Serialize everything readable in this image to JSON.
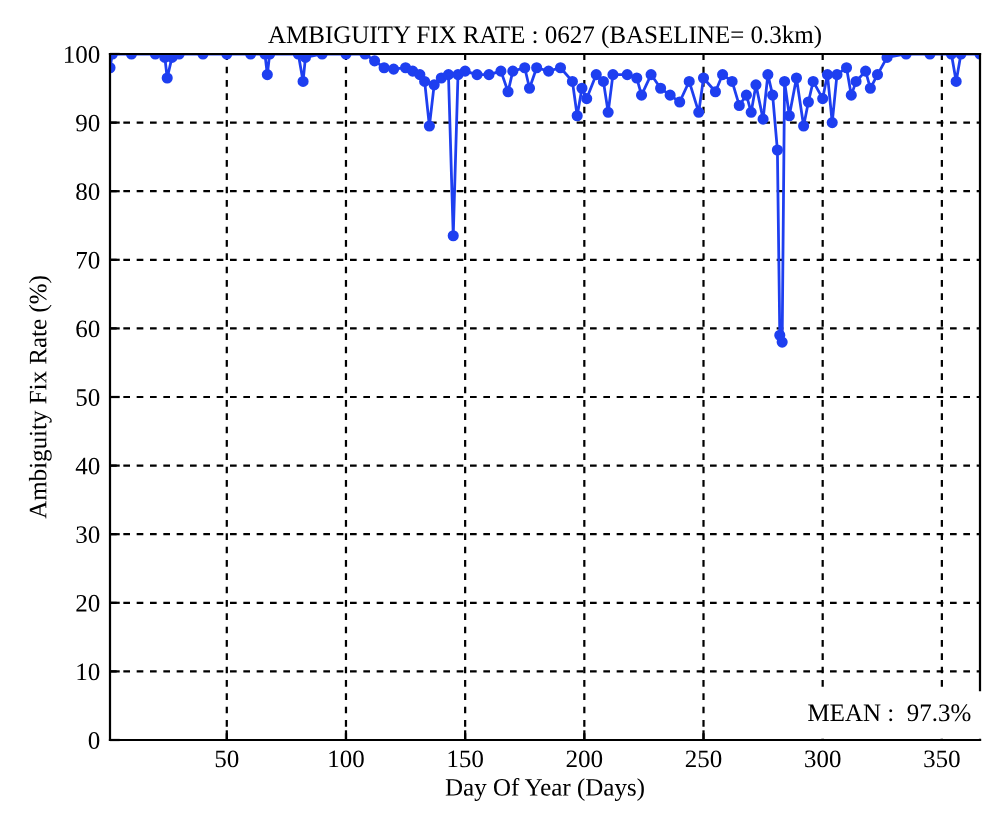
{
  "chart_data": {
    "type": "line",
    "title": "AMBIGUITY FIX RATE : 0627 (BASELINE= 0.3km)",
    "xlabel": "Day Of Year (Days)",
    "ylabel": "Ambiguity Fix Rate (%)",
    "x": [
      1,
      2,
      10,
      20,
      24,
      25,
      27,
      30,
      40,
      50,
      60,
      66,
      67,
      68,
      80,
      82,
      83,
      90,
      100,
      108,
      112,
      116,
      120,
      125,
      128,
      131,
      133,
      135,
      137,
      140,
      143,
      145,
      147,
      150,
      155,
      160,
      165,
      168,
      170,
      175,
      177,
      180,
      185,
      190,
      195,
      197,
      199,
      201,
      205,
      208,
      210,
      212,
      218,
      222,
      224,
      228,
      232,
      236,
      240,
      244,
      248,
      250,
      255,
      258,
      262,
      265,
      268,
      270,
      272,
      275,
      277,
      279,
      281,
      282,
      283,
      284,
      286,
      289,
      292,
      294,
      296,
      300,
      302,
      304,
      306,
      310,
      312,
      314,
      318,
      320,
      323,
      327,
      335,
      345,
      354,
      356,
      358,
      366
    ],
    "series": [
      {
        "color": "#1e3ff0",
        "values": [
          98,
          100,
          100,
          100,
          99.5,
          96.5,
          99.5,
          100,
          100,
          100,
          100,
          100,
          97,
          100,
          100,
          96,
          99.5,
          100,
          100,
          100,
          99,
          98,
          97.8,
          98,
          97.5,
          97,
          96,
          89.5,
          95.5,
          96.5,
          97,
          73.5,
          97,
          97.5,
          97,
          97,
          97.5,
          94.5,
          97.5,
          98,
          95,
          98,
          97.5,
          98,
          96,
          91,
          95,
          93.5,
          97,
          96,
          91.5,
          97,
          97,
          96.5,
          94,
          97,
          95,
          94,
          93,
          96,
          91.5,
          96.5,
          94.5,
          97,
          96,
          92.5,
          94,
          91.5,
          95.5,
          90.5,
          97,
          94,
          86,
          59,
          58,
          96,
          91,
          96.5,
          89.5,
          93,
          96,
          93.5,
          97,
          90,
          97,
          98,
          94,
          96,
          97.5,
          95,
          97,
          99.5,
          100,
          100,
          100,
          96,
          100,
          100
        ]
      }
    ],
    "xlim": [
      1,
      366
    ],
    "ylim": [
      0,
      100
    ],
    "xticks": [
      50,
      100,
      150,
      200,
      250,
      300,
      350
    ],
    "yticks": [
      0,
      10,
      20,
      30,
      40,
      50,
      60,
      70,
      80,
      90,
      100
    ],
    "grid": true,
    "marker": "circle",
    "line_style": "solid",
    "annotations": [
      "MEAN :  97.3%"
    ]
  }
}
